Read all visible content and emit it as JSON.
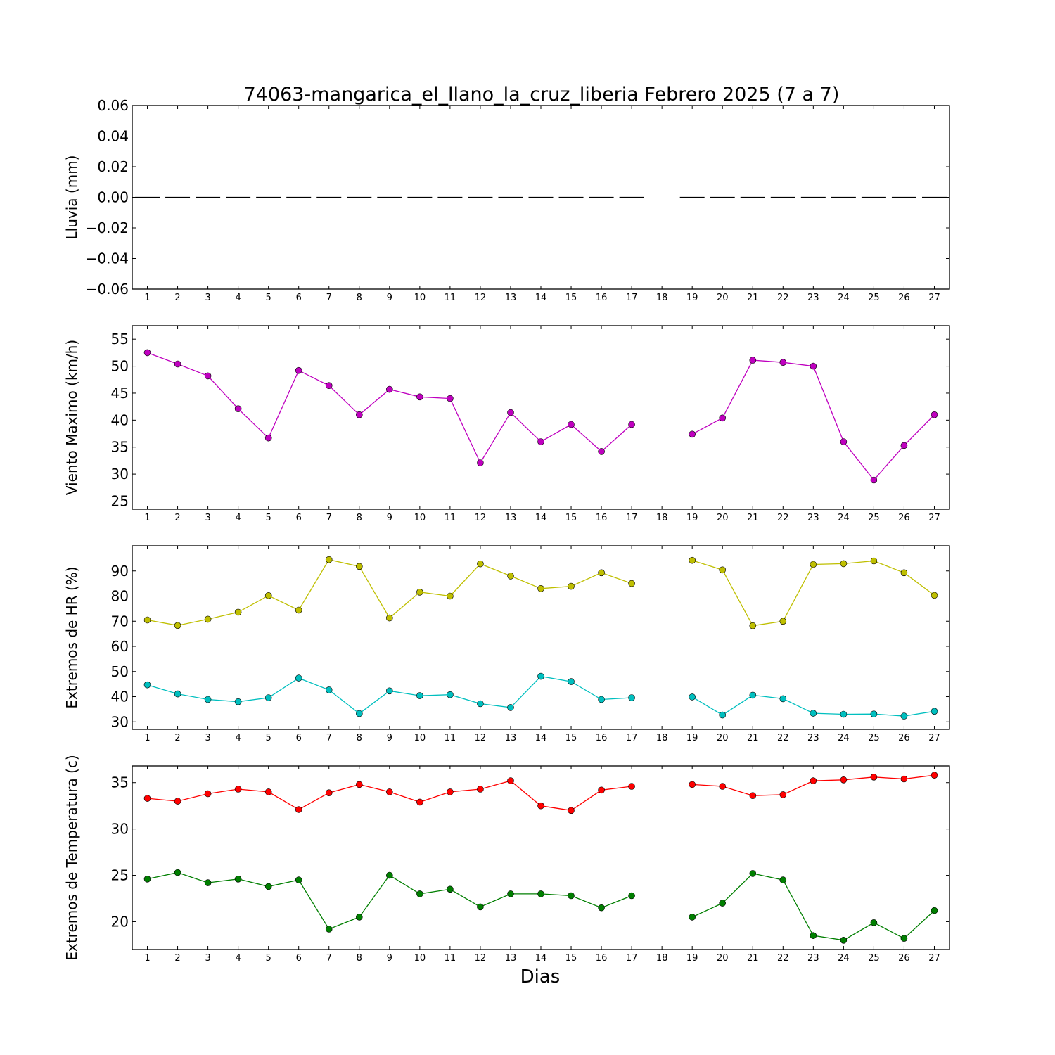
{
  "chart_data": {
    "title": "74063-mangarica_el_llano_la_cruz_liberia Febrero 2025  (7 a 7)",
    "xlabel": "Dias",
    "x_ticks": [
      "1",
      "2",
      "3",
      "4",
      "5",
      "6",
      "7",
      "8",
      "9",
      "10",
      "11",
      "12",
      "13",
      "14",
      "15",
      "16",
      "17",
      "18",
      "19",
      "20",
      "21",
      "22",
      "23",
      "24",
      "25",
      "26",
      "27"
    ],
    "xlim": [
      0.5,
      27.5
    ],
    "panels": [
      {
        "type": "bar",
        "ylabel": "Lluvia (mm)",
        "ylim": [
          -0.06,
          0.06
        ],
        "yticks": [
          0.06,
          0.04,
          0.02,
          0.0,
          -0.02,
          -0.04,
          -0.06
        ],
        "ytick_labels": [
          "0.06",
          "0.04",
          "0.02",
          "0.00",
          "−0.02",
          "−0.04",
          "−0.06"
        ],
        "series": [
          {
            "color": "#000000",
            "values": [
              0,
              0,
              0,
              0,
              0,
              0,
              0,
              0,
              0,
              0,
              0,
              0,
              0,
              0,
              0,
              0,
              0,
              null,
              0,
              0,
              0,
              0,
              0,
              0,
              0,
              0,
              0
            ]
          }
        ]
      },
      {
        "type": "line",
        "ylabel": "Viento Maximo (km/h)",
        "ylim": [
          23.5,
          57.5
        ],
        "yticks": [
          25,
          30,
          35,
          40,
          45,
          50,
          55
        ],
        "ytick_labels": [
          "25",
          "30",
          "35",
          "40",
          "45",
          "50",
          "55"
        ],
        "series": [
          {
            "color": "#bf00bf",
            "values": [
              52.5,
              50.4,
              48.2,
              42.1,
              36.7,
              49.2,
              46.4,
              41.0,
              45.7,
              44.3,
              44.0,
              32.1,
              41.4,
              36.0,
              39.2,
              34.2,
              39.2,
              null,
              37.4,
              40.4,
              51.1,
              50.7,
              50.0,
              36.0,
              28.9,
              35.3,
              41.0
            ]
          }
        ]
      },
      {
        "type": "line",
        "ylabel": "Extremos de HR (%)",
        "ylim": [
          27,
          100
        ],
        "yticks": [
          30,
          40,
          50,
          60,
          70,
          80,
          90
        ],
        "ytick_labels": [
          "30",
          "40",
          "50",
          "60",
          "70",
          "80",
          "90"
        ],
        "series": [
          {
            "color": "#bfbf00",
            "values": [
              70.5,
              68.3,
              70.8,
              73.6,
              80.2,
              74.4,
              94.5,
              91.8,
              71.3,
              81.6,
              80.0,
              92.8,
              88.0,
              83.0,
              83.9,
              89.3,
              85.0,
              null,
              94.2,
              90.4,
              68.2,
              70.0,
              92.6,
              92.9,
              94.0,
              89.3,
              80.3
            ]
          },
          {
            "color": "#00bfbf",
            "values": [
              44.7,
              41.1,
              38.9,
              38.0,
              39.6,
              47.4,
              42.7,
              33.3,
              42.3,
              40.4,
              40.8,
              37.2,
              35.7,
              48.1,
              46.0,
              38.9,
              39.6,
              null,
              39.9,
              32.7,
              40.6,
              39.2,
              33.4,
              33.0,
              33.1,
              32.3,
              34.2
            ]
          }
        ]
      },
      {
        "type": "line",
        "ylabel": "Extremos de Temperatura (c)",
        "ylim": [
          17,
          36.8
        ],
        "yticks": [
          20,
          25,
          30,
          35
        ],
        "ytick_labels": [
          "20",
          "25",
          "30",
          "35"
        ],
        "series": [
          {
            "color": "#ff0000",
            "values": [
              33.3,
              33.0,
              33.8,
              34.3,
              34.0,
              32.1,
              33.9,
              34.8,
              34.0,
              32.9,
              34.0,
              34.3,
              35.2,
              32.5,
              32.0,
              34.2,
              34.6,
              null,
              34.8,
              34.6,
              33.6,
              33.7,
              35.2,
              35.3,
              35.6,
              35.4,
              35.8
            ]
          },
          {
            "color": "#007f00",
            "values": [
              24.6,
              25.3,
              24.2,
              24.6,
              23.8,
              24.5,
              19.2,
              20.5,
              25.0,
              23.0,
              23.5,
              21.6,
              23.0,
              23.0,
              22.8,
              21.5,
              22.8,
              null,
              20.5,
              22.0,
              25.2,
              24.5,
              18.5,
              18.0,
              19.9,
              18.2,
              21.2
            ]
          }
        ]
      }
    ]
  }
}
